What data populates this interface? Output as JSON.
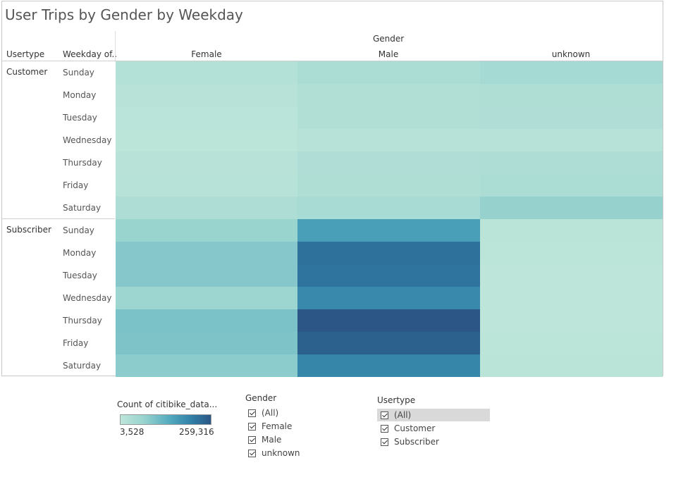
{
  "title": "User Trips by Gender by Weekday",
  "headers": {
    "gender": "Gender",
    "usertype": "Usertype",
    "weekday": "Weekday of.."
  },
  "chart_data": {
    "type": "heatmap",
    "title": "User Trips by Gender by Weekday",
    "columns": [
      "Female",
      "Male",
      "unknown"
    ],
    "column_group_label": "Gender",
    "row_groups": [
      "Customer",
      "Subscriber"
    ],
    "row_labels": [
      "Sunday",
      "Monday",
      "Tuesday",
      "Wednesday",
      "Thursday",
      "Friday",
      "Saturday"
    ],
    "color_range": [
      3528,
      259316
    ],
    "values": {
      "Customer": [
        [
          22000,
          34000,
          47000
        ],
        [
          13000,
          26000,
          30000
        ],
        [
          9000,
          25000,
          28000
        ],
        [
          5000,
          16000,
          16000
        ],
        [
          13000,
          28000,
          32000
        ],
        [
          16000,
          30000,
          35000
        ],
        [
          33000,
          43000,
          72000
        ]
      ],
      "Subscriber": [
        [
          68000,
          160000,
          8000
        ],
        [
          90000,
          222000,
          4500
        ],
        [
          90000,
          220000,
          4000
        ],
        [
          62000,
          190000,
          3528
        ],
        [
          100000,
          259316,
          4000
        ],
        [
          97000,
          245000,
          5000
        ],
        [
          82000,
          195000,
          7000
        ]
      ]
    }
  },
  "legend": {
    "title": "Count of citibike_data...",
    "min_label": "3,528",
    "max_label": "259,316",
    "colors": [
      "#bde5da",
      "#9ad4cf",
      "#52a9be",
      "#2f7da5",
      "#2b5685"
    ]
  },
  "filters": {
    "gender": {
      "title": "Gender",
      "items": [
        "(All)",
        "Female",
        "Male",
        "unknown"
      ]
    },
    "usertype": {
      "title": "Usertype",
      "items": [
        "(All)",
        "Customer",
        "Subscriber"
      ]
    }
  }
}
